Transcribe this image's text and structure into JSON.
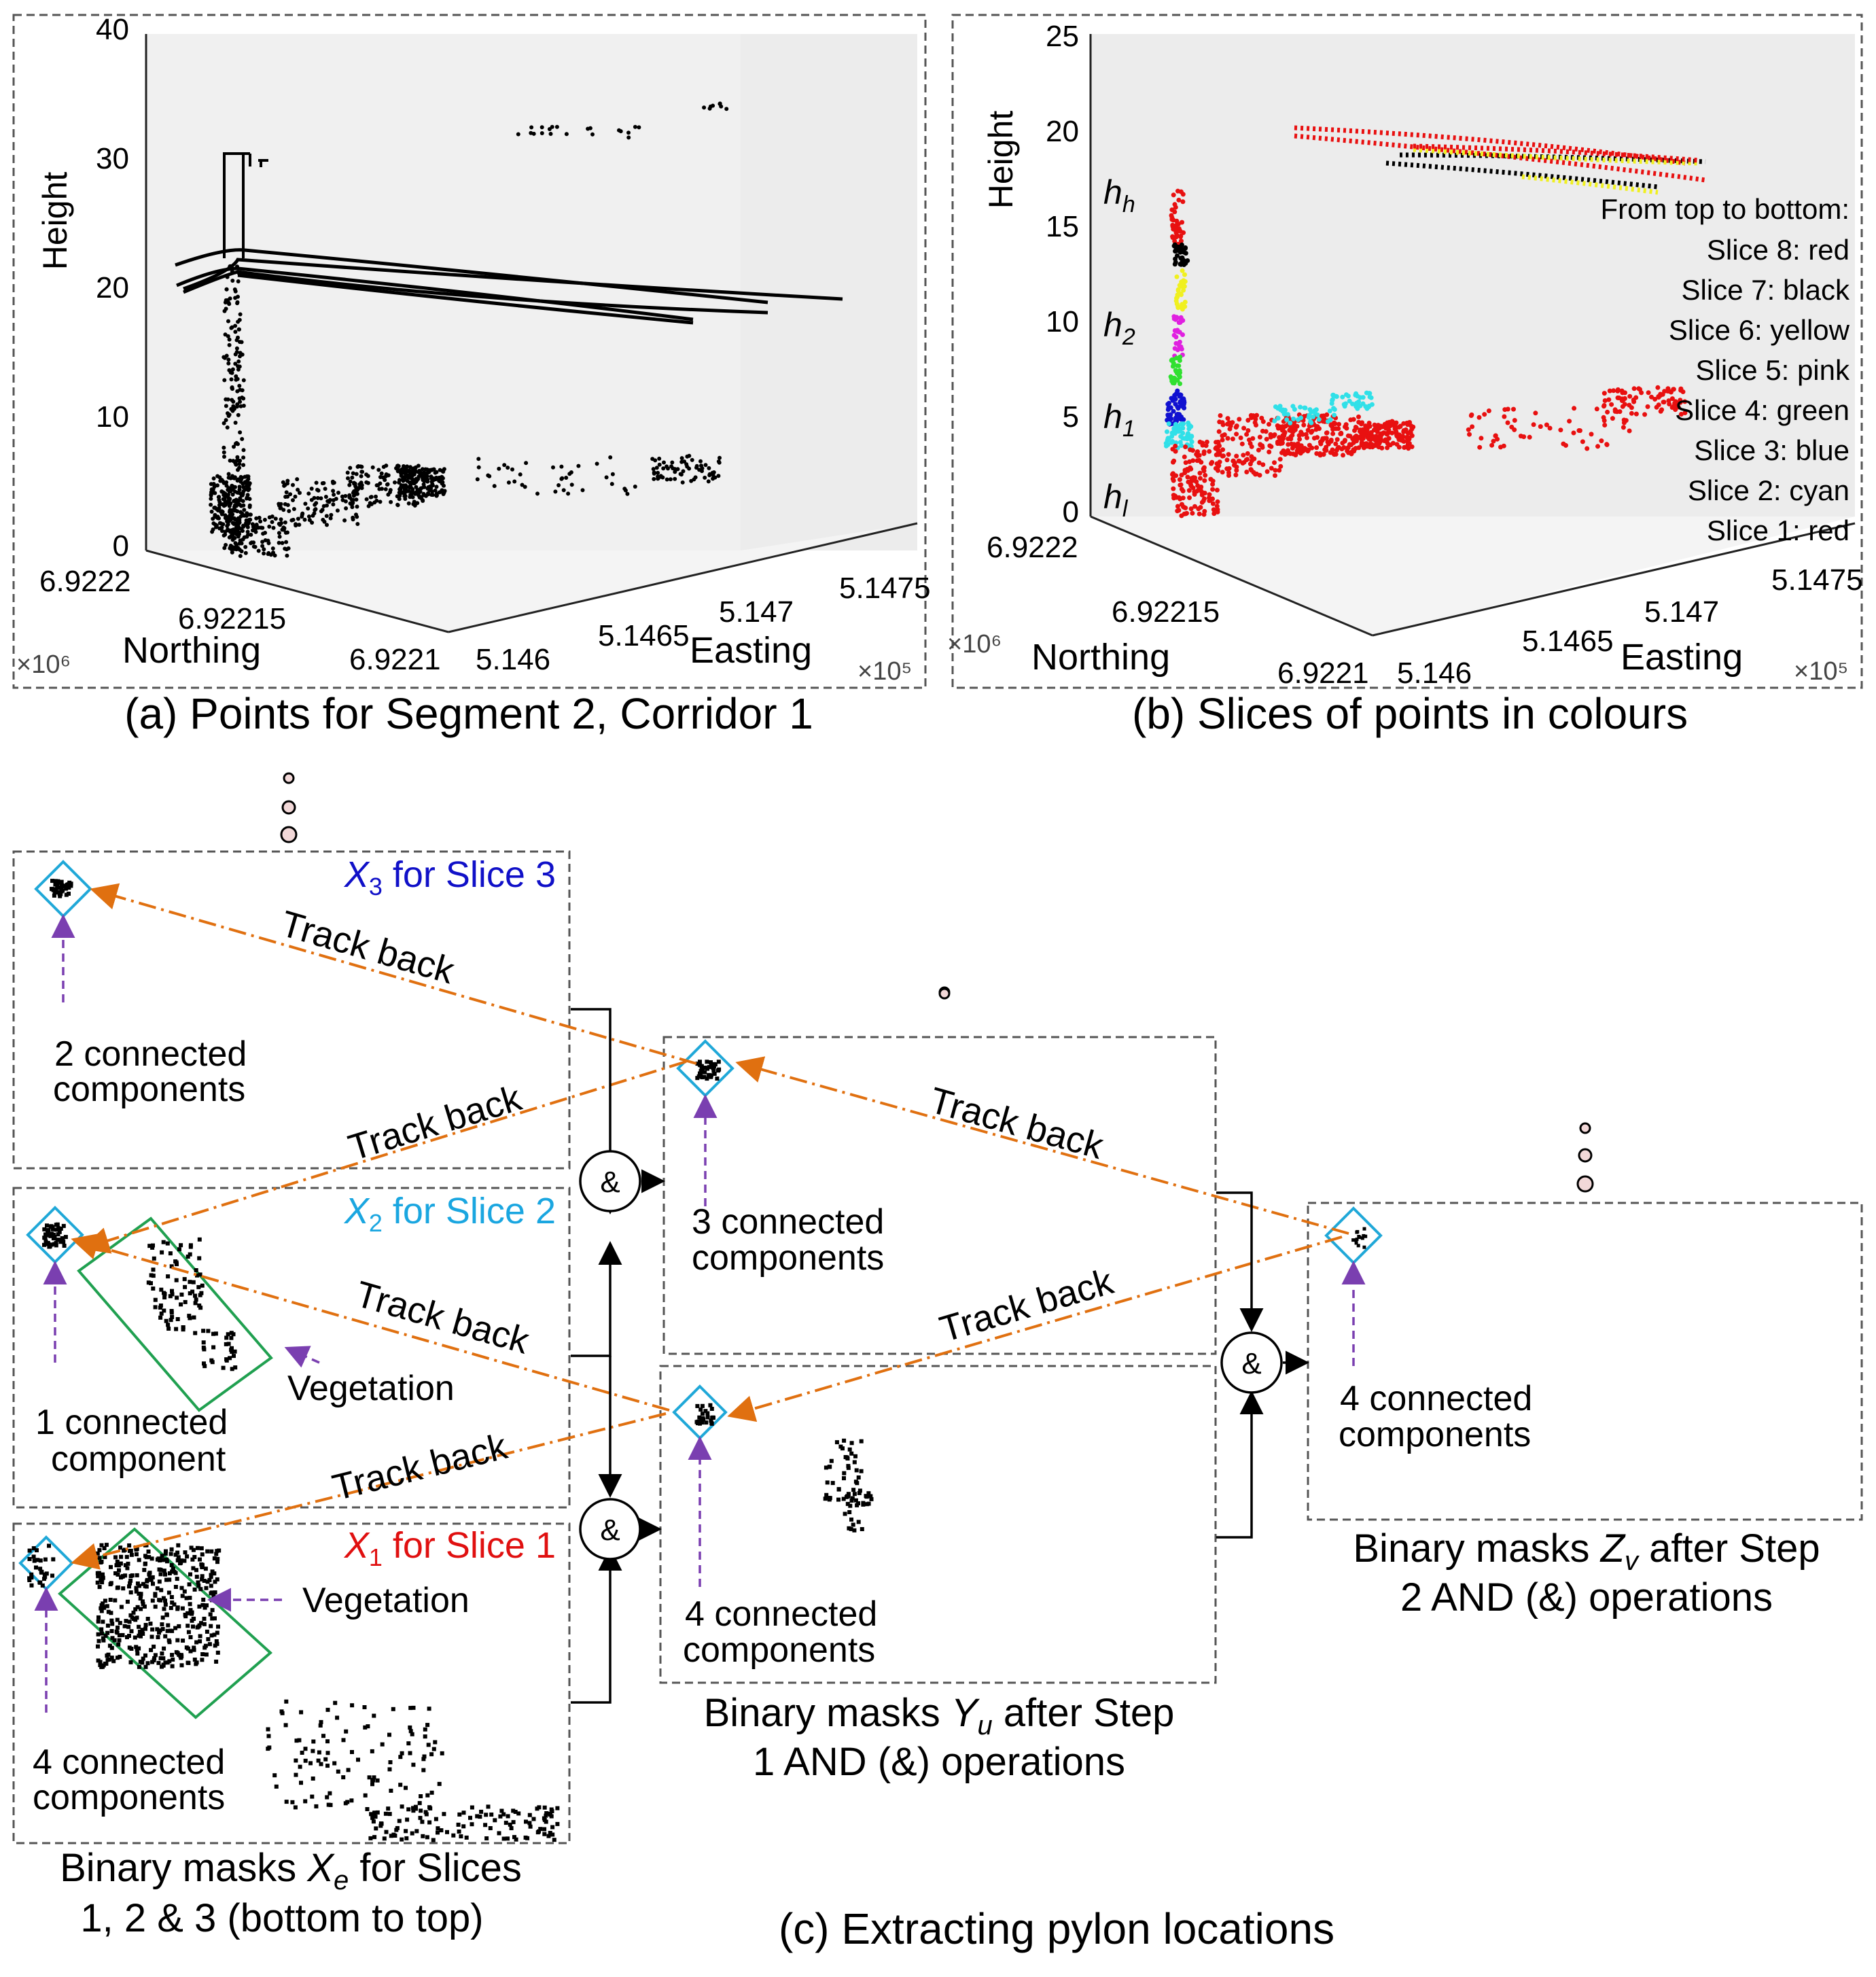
{
  "panel_a": {
    "caption": "(a) Points for Segment 2, Corridor 1",
    "z_ticks": [
      "0",
      "10",
      "20",
      "30",
      "40"
    ],
    "z_label": "Height",
    "northing_ticks": [
      "6.9222",
      "6.92215",
      "6.9221"
    ],
    "northing_label": "Northing",
    "northing_exp": "×10⁶",
    "easting_ticks": [
      "5.146",
      "5.1465",
      "5.147",
      "5.1475"
    ],
    "easting_label": "Easting",
    "easting_exp": "×10⁵"
  },
  "panel_b": {
    "caption": "(b) Slices of points in colours",
    "z_ticks": [
      "0",
      "5",
      "10",
      "15",
      "20",
      "25"
    ],
    "z_label": "Height",
    "northing_ticks": [
      "6.9222",
      "6.92215",
      "6.9221"
    ],
    "northing_label": "Northing",
    "northing_exp": "×10⁶",
    "easting_ticks": [
      "5.146",
      "5.1465",
      "5.147",
      "5.1475"
    ],
    "easting_label": "Easting",
    "easting_exp": "×10⁵",
    "h_marks": [
      {
        "base": "h",
        "sub": "h"
      },
      {
        "base": "h",
        "sub": "2"
      },
      {
        "base": "h",
        "sub": "1"
      },
      {
        "base": "h",
        "sub": "l"
      }
    ],
    "legend_title": "From top to bottom:",
    "legend": [
      {
        "label": "Slice 8: red"
      },
      {
        "label": "Slice 7: black"
      },
      {
        "label": "Slice 6: yellow"
      },
      {
        "label": "Slice 5: pink"
      },
      {
        "label": "Slice 4: green"
      },
      {
        "label": "Slice 3: blue"
      },
      {
        "label": "Slice 2: cyan"
      },
      {
        "label": "Slice 1: red"
      }
    ]
  },
  "panel_c": {
    "caption": "(c) Extracting  pylon locations",
    "x3_title": {
      "sym": "X",
      "sub": "3",
      "rest": " for Slice 3",
      "color": "#1010c8"
    },
    "x2_title": {
      "sym": "X",
      "sub": "2",
      "rest": " for Slice 2",
      "color": "#1aa6e0"
    },
    "x1_title": {
      "sym": "X",
      "sub": "1",
      "rest": " for Slice 1",
      "color": "#e01010"
    },
    "x3_cc": [
      "2 connected",
      "components"
    ],
    "x2_cc": [
      "1 connected",
      "component"
    ],
    "x1_cc": [
      "4 connected",
      "components"
    ],
    "y_top_cc": [
      "3 connected",
      "components"
    ],
    "y_bot_cc": [
      "4 connected",
      "components"
    ],
    "z_cc": [
      "4 connected",
      "components"
    ],
    "vegetation": "Vegetation",
    "track_back": "Track back",
    "and_op": "&",
    "xe_caption": {
      "l1a": "Binary masks ",
      "sym": "X",
      "sub": "e",
      "l1b": " for Slices",
      "l2": "1, 2 & 3 (bottom to top)"
    },
    "yu_caption": {
      "l1a": "Binary masks ",
      "sym": "Y",
      "sub": "u",
      "l1b": " after Step",
      "l2": "1 AND (&) operations"
    },
    "zv_caption": {
      "l1a": "Binary masks ",
      "sym": "Z",
      "sub": "v",
      "l1b": " after Step",
      "l2": "2 AND (&) operations"
    }
  },
  "colors": {
    "orange": "#e07010",
    "purple": "#7a3fb0",
    "teal": "#20a8d8",
    "green": "#20a050",
    "red": "#e81010",
    "cyan": "#30e0e8",
    "yellow": "#f0f020",
    "blue": "#1010d0",
    "pink": "#e020e0",
    "lgreen": "#30e030"
  }
}
